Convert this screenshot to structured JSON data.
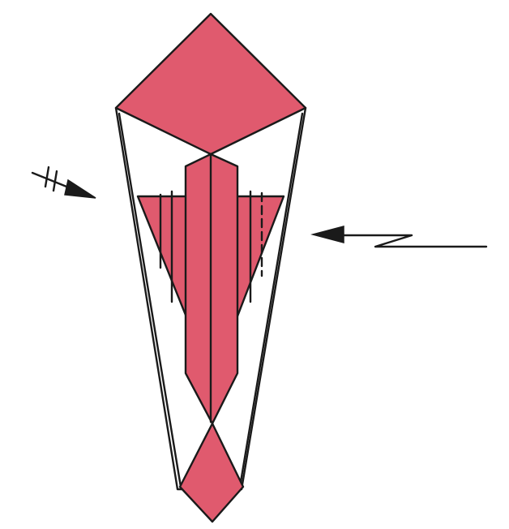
{
  "diagram": {
    "colors": {
      "paper_front": "#e05a6e",
      "paper_back": "#ffffff",
      "ink": "#1a1a1a",
      "background": "#ffffff"
    },
    "symbols": {
      "left_arrow": "fold-under-arrow-icon",
      "right_arrow": "zigzag-pleat-arrow-icon"
    }
  }
}
